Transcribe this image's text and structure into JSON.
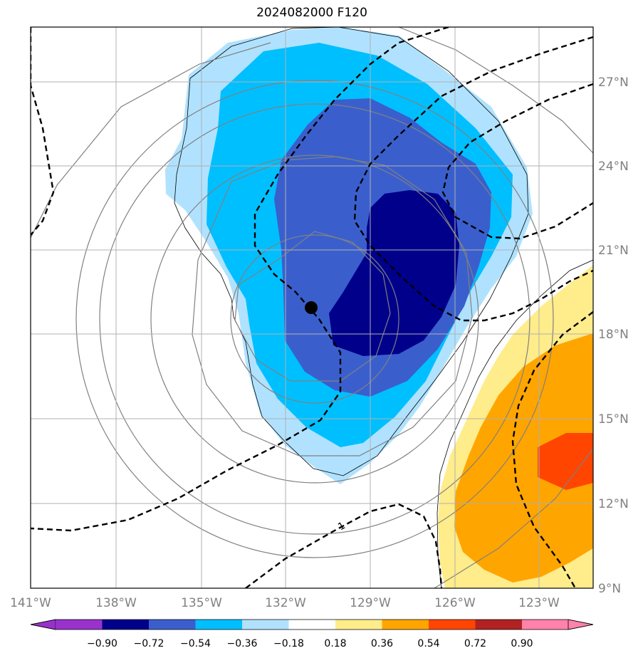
{
  "title": "2024082000 F120",
  "colors": {
    "c_le_m090": "#9932cc",
    "c_m090_m072": "#00008b",
    "c_m072_m054": "#3a5fcd",
    "c_m054_m036": "#00bfff",
    "c_m036_m018": "#b0e2ff",
    "c_m018_018": "#ffffff",
    "c_018_036": "#ffec8b",
    "c_036_054": "#ffa500",
    "c_054_072": "#ff4500",
    "c_072_090": "#b22222",
    "c_ge_090": "#ff82ab"
  },
  "map": {
    "lon_labels": [
      "141°W",
      "138°W",
      "135°W",
      "132°W",
      "129°W",
      "126°W",
      "123°W"
    ],
    "lat_labels": [
      "27°N",
      "24°N",
      "21°N",
      "18°N",
      "15°N",
      "12°N",
      "9°N"
    ],
    "storm_center": {
      "lon": -131.2,
      "lat": 18.9
    },
    "contour_label": "1"
  },
  "colorbar": {
    "levels": [
      "−0.90",
      "−0.72",
      "−0.54",
      "−0.36",
      "−0.18",
      "0.18",
      "0.36",
      "0.54",
      "0.72",
      "0.90"
    ]
  }
}
